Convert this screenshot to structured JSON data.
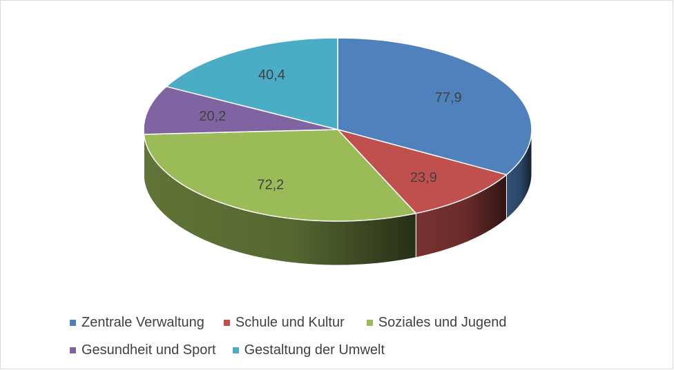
{
  "chart_data": {
    "type": "pie",
    "title": "",
    "categories": [
      "Zentrale Verwaltung",
      "Schule und Kultur",
      "Soziales und Jugend",
      "Gesundheit und Sport",
      "Gestaltung der Umwelt"
    ],
    "values": [
      77.9,
      23.9,
      72.2,
      20.2,
      40.4
    ],
    "value_labels": [
      "77,9",
      "23,9",
      "72,2",
      "20,2",
      "40,4"
    ],
    "colors": [
      "#4f81bd",
      "#c0504d",
      "#9bbb59",
      "#8064a2",
      "#4bacc6"
    ],
    "style": "3d",
    "legend_position": "bottom"
  }
}
